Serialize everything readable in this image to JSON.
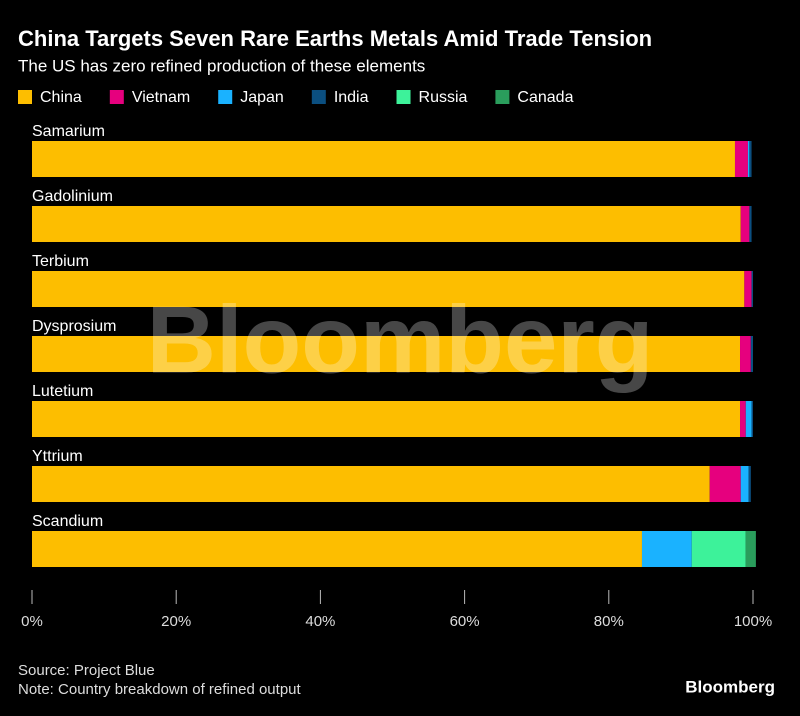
{
  "chart_data": {
    "type": "stacked_bar_horizontal",
    "title": "China Targets Seven Rare Earths Metals Amid Trade Tension",
    "subtitle": "The US has zero refined production of these elements",
    "categories": [
      "Samarium",
      "Gadolinium",
      "Terbium",
      "Dysprosium",
      "Lutetium",
      "Yttrium",
      "Scandium"
    ],
    "series": [
      {
        "name": "China",
        "color": "#fdbe00",
        "values": [
          97.5,
          98.3,
          98.8,
          98.2,
          98.2,
          94.0,
          84.6
        ]
      },
      {
        "name": "Vietnam",
        "color": "#e6007e",
        "values": [
          1.8,
          1.2,
          1.0,
          1.5,
          0.8,
          4.3,
          0
        ]
      },
      {
        "name": "Japan",
        "color": "#1ab2ff",
        "values": [
          0.2,
          0,
          0,
          0,
          0.8,
          1.1,
          6.9
        ]
      },
      {
        "name": "India",
        "color": "#0b4f80",
        "values": [
          0.3,
          0.3,
          0.2,
          0.3,
          0.2,
          0.3,
          0
        ]
      },
      {
        "name": "Russia",
        "color": "#3df29a",
        "values": [
          0,
          0,
          0,
          0,
          0,
          0,
          7.5
        ]
      },
      {
        "name": "Canada",
        "color": "#2a9d5c",
        "values": [
          0,
          0,
          0,
          0,
          0,
          0,
          1.4
        ]
      }
    ],
    "xlim": [
      0,
      100
    ],
    "xticks": [
      {
        "value": 0,
        "label": "0%"
      },
      {
        "value": 20,
        "label": "20%"
      },
      {
        "value": 40,
        "label": "40%"
      },
      {
        "value": 60,
        "label": "60%"
      },
      {
        "value": 80,
        "label": "80%"
      },
      {
        "value": 100,
        "label": "100%"
      }
    ],
    "source": "Source: Project Blue",
    "note": "Note: Country breakdown of refined output",
    "brand": "Bloomberg",
    "watermark": "Bloomberg"
  }
}
